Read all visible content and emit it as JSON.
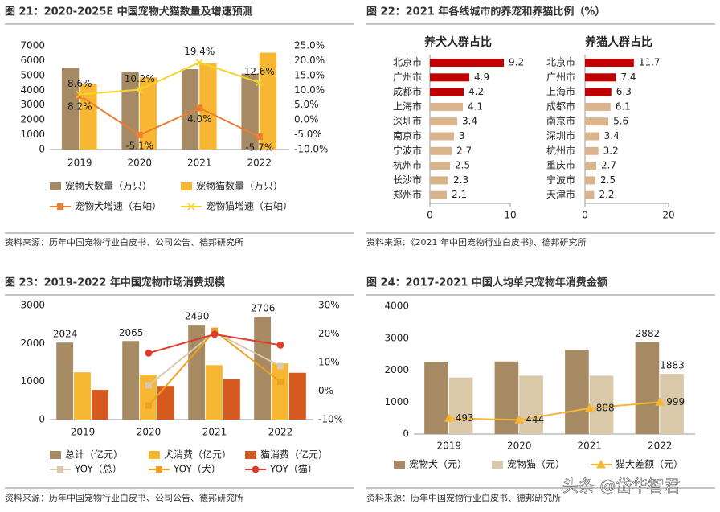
{
  "chart_data": [
    {
      "type": "combo",
      "title": "图 21：2020-2025E 中国宠物犬猫数量及增速预测",
      "source": "资料来源：历年中国宠物行业白皮书、公司公告、德邦研究所",
      "categories": [
        "2019",
        "2020",
        "2021",
        "2022"
      ],
      "ylim": [
        0,
        7000
      ],
      "yticks": [
        0,
        1000,
        2000,
        3000,
        4000,
        5000,
        6000,
        7000
      ],
      "y2lim": [
        -10,
        25
      ],
      "y2ticks": [
        {
          "value": -10,
          "label": "-10.0%"
        },
        {
          "value": -5,
          "label": "-5.0%"
        },
        {
          "value": 0,
          "label": "0.0%"
        },
        {
          "value": 5,
          "label": "5.0%"
        },
        {
          "value": 10,
          "label": "10.0%"
        },
        {
          "value": 15,
          "label": "15.0%"
        },
        {
          "value": 20,
          "label": "20.0%"
        },
        {
          "value": 25,
          "label": "25.0%"
        }
      ],
      "legend": "bottom",
      "series": [
        {
          "name": "宠物犬数量（万只）",
          "type": "bar",
          "color": "#a58a64",
          "values": [
            5503,
            5222,
            5429,
            5119
          ]
        },
        {
          "name": "宠物猫数量（万只）",
          "type": "bar",
          "color": "#f7b733",
          "values": [
            4412,
            4862,
            5806,
            6536
          ]
        },
        {
          "name": "宠物犬增速（右轴）",
          "type": "line",
          "axis": "y2",
          "marker": "square",
          "color": "#ed7d31",
          "label_position": "below",
          "values": [
            8.2,
            -5.1,
            4.0,
            -5.7
          ],
          "value_labels": [
            "8.2%",
            "-5.1%",
            "4.0%",
            "-5.7%"
          ]
        },
        {
          "name": "宠物猫增速（右轴）",
          "type": "line",
          "axis": "y2",
          "marker": "x",
          "color": "#f5d327",
          "label_position": "above",
          "values": [
            8.6,
            10.2,
            19.4,
            12.6
          ],
          "value_labels": [
            "8.6%",
            "10.2%",
            "19.4%",
            "12.6%"
          ]
        }
      ]
    },
    {
      "type": "hbar",
      "title": "图 22：2021 年各线城市的养宠和养猫比例（%）",
      "source": "资料来源：《2021 年中国宠物行业白皮书》、德邦研究所",
      "panels": [
        {
          "subtitle": "养犬人群占比",
          "categories": [
            "北京市",
            "广州市",
            "成都市",
            "上海市",
            "深圳市",
            "南京市",
            "宁波市",
            "杭州市",
            "长沙市",
            "郑州市"
          ],
          "values": [
            9.2,
            4.9,
            4.2,
            4.1,
            3.4,
            3.0,
            2.7,
            2.5,
            2.3,
            2.1
          ],
          "colors": [
            "#c00000",
            "#c00000",
            "#c00000",
            "#d9b38c",
            "#d9b38c",
            "#d9b38c",
            "#d9b38c",
            "#d9b38c",
            "#d9b38c",
            "#d9b38c"
          ],
          "xlim": [
            0,
            10
          ],
          "xticks": [
            0,
            10
          ]
        },
        {
          "subtitle": "养猫人群占比",
          "categories": [
            "北京市",
            "广州市",
            "上海市",
            "成都市",
            "南京市",
            "深圳市",
            "杭州市",
            "重庆市",
            "宁波市",
            "天津市"
          ],
          "values": [
            11.7,
            7.4,
            6.3,
            6.1,
            5.6,
            3.4,
            3.2,
            2.7,
            2.5,
            2.2
          ],
          "colors": [
            "#c00000",
            "#c00000",
            "#c00000",
            "#d9b38c",
            "#d9b38c",
            "#d9b38c",
            "#d9b38c",
            "#d9b38c",
            "#d9b38c",
            "#d9b38c"
          ],
          "xlim": [
            0,
            20
          ],
          "xticks": [
            0,
            20
          ]
        }
      ]
    },
    {
      "type": "combo",
      "title": "图 23：2019-2022 年中国宠物市场消费规模",
      "source": "资料来源：历年中国宠物行业白皮书、公司公告、德邦研究所",
      "categories": [
        "2019",
        "2020",
        "2021",
        "2022"
      ],
      "ylim": [
        0,
        3000
      ],
      "yticks": [
        0,
        1000,
        2000,
        3000
      ],
      "y2lim": [
        -10,
        30
      ],
      "y2ticks": [
        {
          "value": -10,
          "label": "-10%"
        },
        {
          "value": 0,
          "label": "0%"
        },
        {
          "value": 10,
          "label": "10%"
        },
        {
          "value": 20,
          "label": "20%"
        },
        {
          "value": 30,
          "label": "30%"
        }
      ],
      "legend": "bottom",
      "series": [
        {
          "name": "总计（亿元）",
          "type": "bar",
          "color": "#a58a64",
          "data_labels": "all",
          "values": [
            2024,
            2065,
            2490,
            2706
          ]
        },
        {
          "name": "犬消费（亿元）",
          "type": "bar",
          "color": "#f7b733",
          "values": [
            1244,
            1181,
            1430,
            1475
          ]
        },
        {
          "name": "猫消费（亿元）",
          "type": "bar",
          "color": "#d65a1f",
          "values": [
            780,
            884,
            1060,
            1231
          ]
        },
        {
          "name": "YOY（总）",
          "type": "line",
          "axis": "y2",
          "marker": "square",
          "color": "#d8c9ac",
          "values": [
            null,
            2.0,
            20.6,
            8.7
          ]
        },
        {
          "name": "YOY（犬）",
          "type": "line",
          "axis": "y2",
          "marker": "square",
          "color": "#f0a020",
          "values": [
            null,
            -5.1,
            21.1,
            3.2
          ]
        },
        {
          "name": "YOY（猫）",
          "type": "line",
          "axis": "y2",
          "marker": "circle",
          "color": "#e03c2c",
          "values": [
            null,
            13.3,
            19.9,
            16.1
          ]
        }
      ]
    },
    {
      "type": "combo",
      "title": "图 24：2017-2021 中国人均单只宠物年消费金额",
      "source": "资料来源：历年中国宠物行业白皮书、德邦研究所",
      "categories": [
        "2019",
        "2020",
        "2021",
        "2022"
      ],
      "ylim": [
        0,
        4000
      ],
      "yticks": [
        0,
        1000,
        2000,
        3000,
        4000
      ],
      "legend": "bottom",
      "series": [
        {
          "name": "宠物犬（元）",
          "type": "bar",
          "color": "#a58a64",
          "data_labels": "last",
          "values": [
            2262,
            2270,
            2634,
            2882
          ]
        },
        {
          "name": "宠物猫（元）",
          "type": "bar",
          "color": "#d9c9a8",
          "data_labels": "last",
          "values": [
            1769,
            1826,
            1826,
            1883
          ]
        },
        {
          "name": "猫犬差额（元）",
          "type": "line",
          "marker": "triangle",
          "color": "#f7b733",
          "label_position": "right",
          "values": [
            493,
            444,
            808,
            999
          ]
        }
      ]
    }
  ],
  "watermark": "头条 @岱华智君"
}
